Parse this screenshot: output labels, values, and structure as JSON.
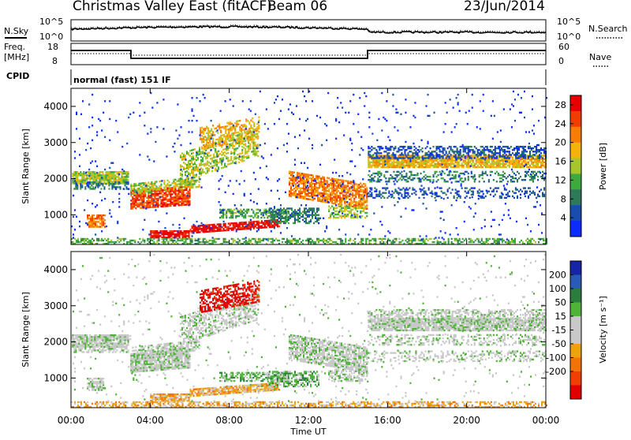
{
  "header": {
    "station": "Christmas Valley East (fitACF)",
    "beam": "Beam 06",
    "date": "23/Jun/2014"
  },
  "panels": {
    "nsky_label": "N.Sky",
    "nsearch_label": "N.Search",
    "freq_label": "Freq.",
    "freq_unit": "[MHz]",
    "nave_label": "Nave",
    "cpid_label": "CPID",
    "cpid_value": "normal (fast) 151 IF",
    "noise_ticks_left": [
      "10^5",
      "10^0"
    ],
    "noise_ticks_right": [
      "10^5",
      "10^0"
    ],
    "freq_ticks": [
      "18",
      "8"
    ],
    "nave_ticks": [
      "60",
      "0"
    ]
  },
  "colors": {
    "power": [
      "#0b2bff",
      "#1a4cb0",
      "#2d7a5a",
      "#3caa3c",
      "#a7c62b",
      "#f4b20c",
      "#f77d06",
      "#f33c02",
      "#e80000"
    ],
    "velocity": [
      "#1724a8",
      "#2a5ab7",
      "#2b7d3e",
      "#4fb33a",
      "#c8c8c8",
      "#c8c8c8",
      "#f0a20e",
      "#f47206",
      "#ef3f02",
      "#e00000"
    ]
  },
  "chart_data": [
    {
      "type": "heatmap",
      "name": "Power",
      "ylabel": "Slant Range [km]",
      "xlabel": "",
      "x_ticks": [
        "00:00",
        "04:00",
        "08:00",
        "12:00",
        "16:00",
        "20:00",
        "00:00"
      ],
      "y_ticks": [
        1000,
        2000,
        3000,
        4000
      ],
      "ylim": [
        180,
        4500
      ],
      "xlim_hours": [
        0,
        24
      ],
      "colorbar_label": "Power [dB]",
      "colorbar_ticks": [
        "4",
        "8",
        "12",
        "16",
        "20",
        "24",
        "28"
      ],
      "colorbar_range": [
        0,
        30
      ]
    },
    {
      "type": "heatmap",
      "name": "Velocity",
      "ylabel": "Slant Range [km]",
      "xlabel": "Time UT",
      "x_ticks": [
        "00:00",
        "04:00",
        "08:00",
        "12:00",
        "16:00",
        "20:00",
        "00:00"
      ],
      "y_ticks": [
        1000,
        2000,
        3000,
        4000
      ],
      "ylim": [
        180,
        4500
      ],
      "xlim_hours": [
        0,
        24
      ],
      "colorbar_label": "Velocity [m s⁻¹]",
      "colorbar_ticks": [
        "200",
        "100",
        "50",
        "15",
        "-15",
        "-50",
        "-100",
        "-200"
      ]
    }
  ]
}
